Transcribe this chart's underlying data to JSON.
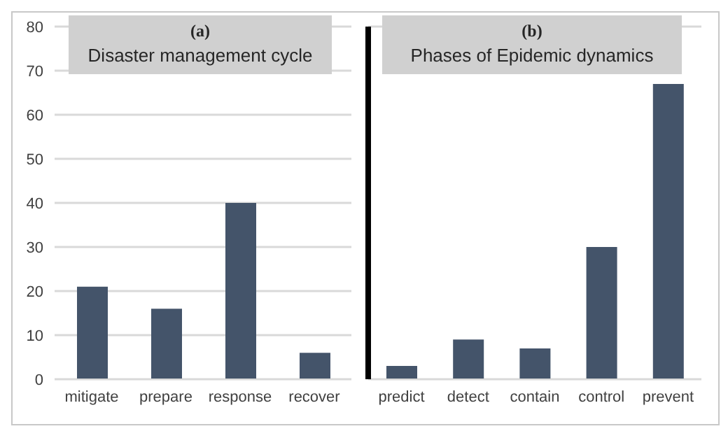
{
  "chart_data": [
    {
      "type": "bar",
      "title": "(a)",
      "subtitle": "Disaster management cycle",
      "categories": [
        "mitigate",
        "prepare",
        "response",
        "recover"
      ],
      "values": [
        21,
        16,
        40,
        6
      ],
      "color": "#44546a",
      "ylim": [
        0,
        80
      ],
      "yticks": [
        0,
        10,
        20,
        30,
        40,
        50,
        60,
        70,
        80
      ],
      "grid": "y"
    },
    {
      "type": "bar",
      "title": "(b)",
      "subtitle": "Phases of Epidemic dynamics",
      "categories": [
        "predict",
        "detect",
        "contain",
        "control",
        "prevent"
      ],
      "values": [
        3,
        9,
        7,
        30,
        67
      ],
      "color": "#44546a",
      "ylim": [
        0,
        80
      ],
      "yticks": [
        0,
        10,
        20,
        30,
        40,
        50,
        60,
        70,
        80
      ],
      "grid": "y",
      "tick_labels": "x"
    }
  ]
}
